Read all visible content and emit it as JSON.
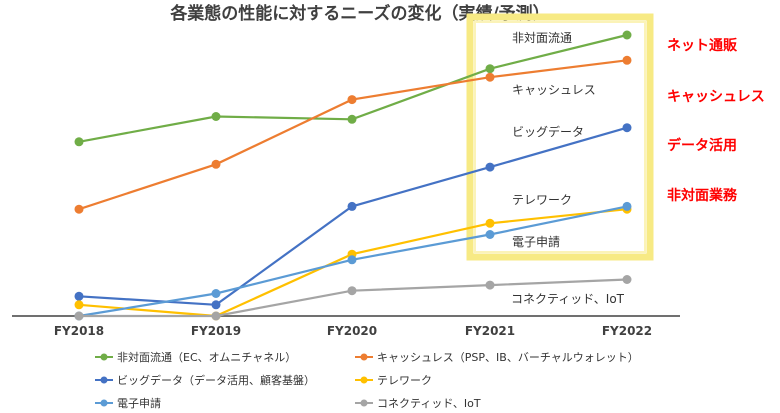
{
  "chart_data": {
    "type": "line",
    "title": "各業態の性能に対するニーズの変化（実績/予測）",
    "x": [
      "FY2018",
      "FY2019",
      "FY2020",
      "FY2021",
      "FY2022"
    ],
    "xlabel": "",
    "ylabel": "",
    "ylim": [
      0,
      100
    ],
    "grid": false,
    "legend": "bottom",
    "series": [
      {
        "name": "非対面流通（EC、オムニチャネル）",
        "inline_label": "非対面流通",
        "color": "#70ad47",
        "values": [
          62,
          71,
          70,
          88,
          100
        ]
      },
      {
        "name": "キャッシュレス（PSP、IB、バーチャルウォレット）",
        "inline_label": "キャッシュレス",
        "color": "#ed7d31",
        "values": [
          38,
          54,
          77,
          85,
          91
        ]
      },
      {
        "name": "ビッグデータ（データ活用、顧客基盤）",
        "inline_label": "ビッグデータ",
        "color": "#4472c4",
        "values": [
          7,
          4,
          39,
          53,
          67
        ]
      },
      {
        "name": "テレワーク",
        "inline_label": "テレワーク",
        "color": "#ffc000",
        "values": [
          4,
          0,
          22,
          33,
          38
        ]
      },
      {
        "name": "電子申請",
        "inline_label": "電子申請",
        "color": "#5b9bd5",
        "values": [
          0,
          8,
          20,
          29,
          39
        ]
      },
      {
        "name": "コネクティッド、IoT",
        "inline_label": "コネクティッド、IoT",
        "color": "#a5a5a5",
        "values": [
          0,
          0,
          9,
          11,
          13
        ]
      }
    ],
    "annotations": [
      "ネット通販",
      "キャッシュレス",
      "データ活用",
      "非対面業務"
    ],
    "annotation_color": "#ff0000",
    "highlight_box_color": "#f7ea84"
  }
}
